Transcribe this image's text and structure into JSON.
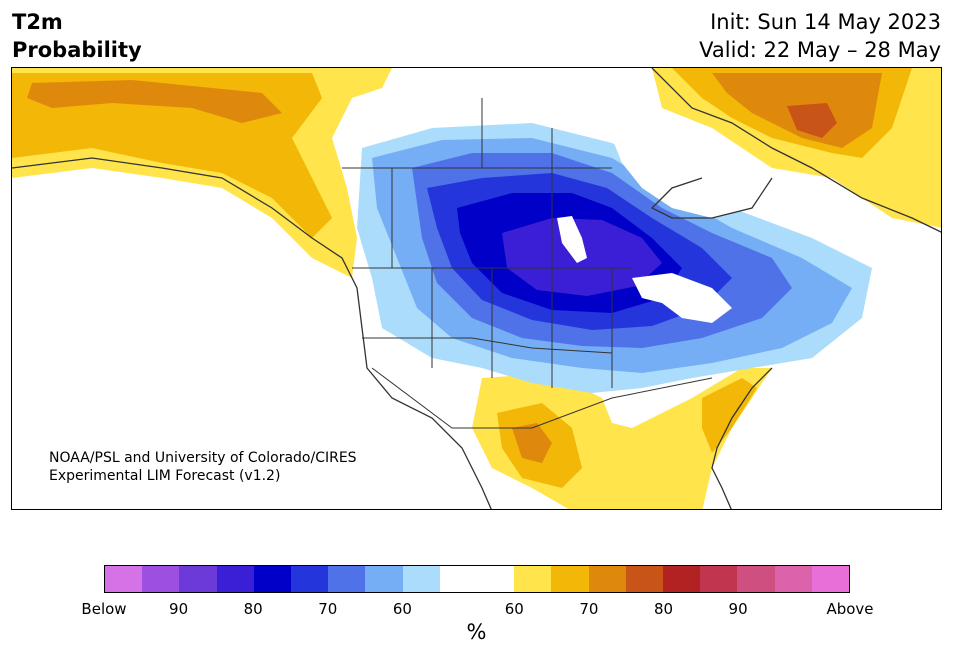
{
  "header": {
    "title_line1": "T2m",
    "title_line2": "Probability",
    "init": "Init: Sun 14 May 2023",
    "valid": "Valid: 22 May – 28 May"
  },
  "credit": {
    "line1": "NOAA/PSL and University of Colorado/CIRES",
    "line2": "Experimental LIM Forecast (v1.2)"
  },
  "colorbar": {
    "unit": "%",
    "colors": [
      "#d472e6",
      "#9c4fe0",
      "#6b3ad8",
      "#3a1fd6",
      "#0000c8",
      "#2535dc",
      "#4f72e8",
      "#75aef4",
      "#acdcfc",
      "#ffffff",
      "#ffffff",
      "#ffe44c",
      "#f2b707",
      "#df890c",
      "#c85417",
      "#b32222",
      "#c2354f",
      "#cf4f80",
      "#dc62ab",
      "#e86fd8"
    ],
    "tick_labels": [
      "Below",
      "90",
      "80",
      "70",
      "60",
      "60",
      "70",
      "80",
      "90",
      "Above"
    ]
  },
  "map": {
    "region": "North America",
    "palette": {
      "land": "#ffffff",
      "ocean": "#ffffff",
      "above_60": "#ffe44c",
      "above_70": "#f2b707",
      "above_80": "#df890c",
      "above_90": "#c85417",
      "below_60": "#acdcfc",
      "below_70": "#75aef4",
      "below_80": "#4f72e8",
      "below_85": "#2535dc",
      "below_90": "#0000c8",
      "below_95": "#3a1fd6",
      "borders": "#333333"
    }
  }
}
